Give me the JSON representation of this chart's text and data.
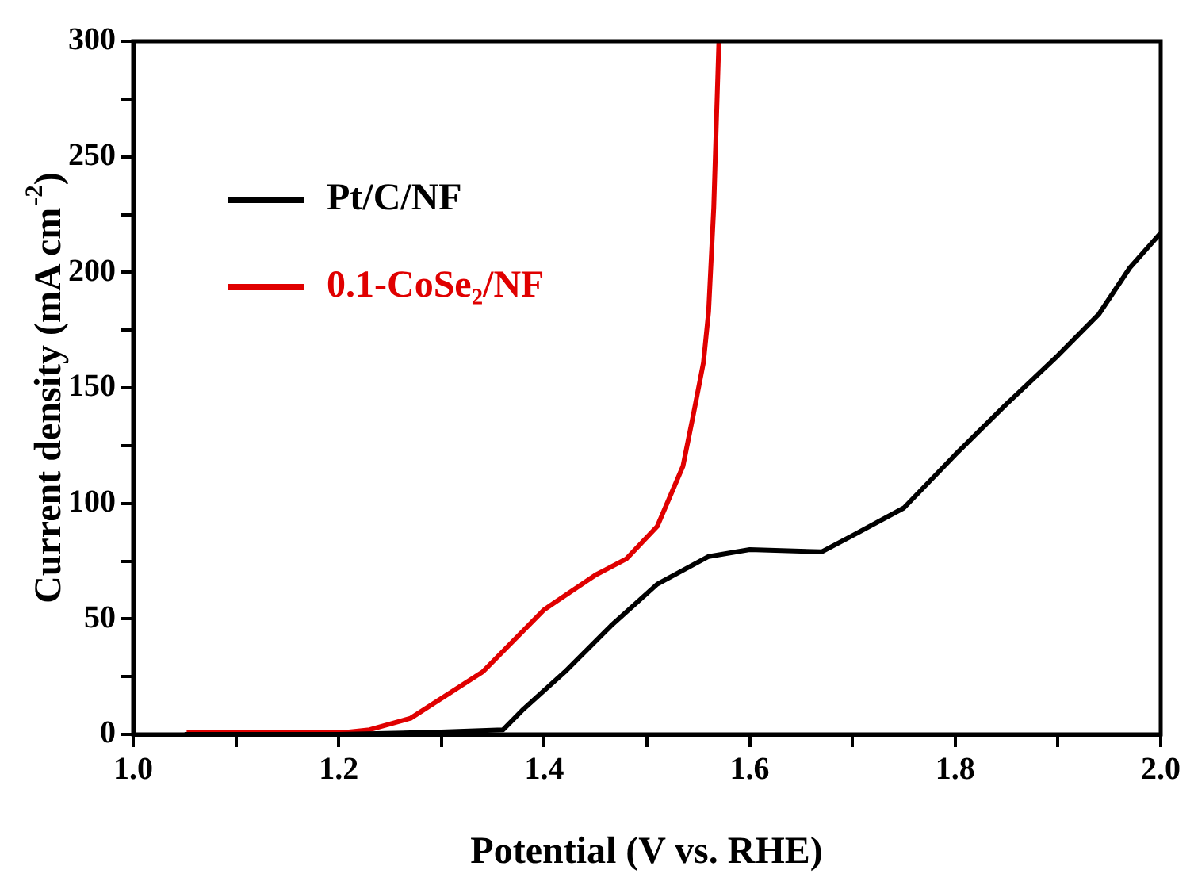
{
  "chart_data": {
    "type": "line",
    "xlabel": "Potential (V vs. RHE)",
    "ylabel": "Current density (mA cm$^{-2}$)",
    "xlim": [
      1.0,
      2.0
    ],
    "ylim": [
      0,
      300
    ],
    "xticks": [
      {
        "value": 1,
        "label": "1.0"
      },
      {
        "value": 1.1,
        "label": null
      },
      1.2,
      {
        "value": 1.3,
        "label": null
      },
      1.4,
      {
        "value": 1.5,
        "label": null
      },
      1.6,
      {
        "value": 1.7,
        "label": null
      },
      1.8,
      {
        "value": 1.9,
        "label": null
      },
      {
        "value": 2,
        "label": "2.0"
      }
    ],
    "yticks": [
      0,
      {
        "value": 25,
        "label": null
      },
      50,
      {
        "value": 75,
        "label": null
      },
      100,
      {
        "value": 125,
        "label": null
      },
      150,
      {
        "value": 175,
        "label": null
      },
      200,
      {
        "value": 225,
        "label": null
      },
      250,
      {
        "value": 275,
        "label": null
      },
      300
    ],
    "grid": false,
    "legend": "top left",
    "marker": "none",
    "line_style": "solid",
    "series": [
      {
        "name": "Pt/C/NF",
        "color": "#000000",
        "x": [
          1.05,
          1.2,
          1.3,
          1.36,
          1.38,
          1.42,
          1.465,
          1.51,
          1.56,
          1.6,
          1.67,
          1.7,
          1.75,
          1.8,
          1.85,
          1.9,
          1.94,
          1.97,
          2.0
        ],
        "values": [
          0,
          0,
          1,
          2,
          11,
          27,
          47,
          65,
          77,
          80,
          79,
          86,
          98,
          121,
          143,
          164,
          182,
          202,
          217
        ]
      },
      {
        "name": "0.1-CoSe₂/NF",
        "color": "#e00000",
        "x": [
          1.052,
          1.21,
          1.23,
          1.27,
          1.34,
          1.4,
          1.45,
          1.48,
          1.51,
          1.535,
          1.545,
          1.555,
          1.56,
          1.565,
          1.57
        ],
        "values": [
          1,
          1,
          2,
          7,
          27,
          54,
          69,
          76,
          90,
          116,
          138,
          161,
          183,
          228,
          300
        ]
      }
    ]
  }
}
